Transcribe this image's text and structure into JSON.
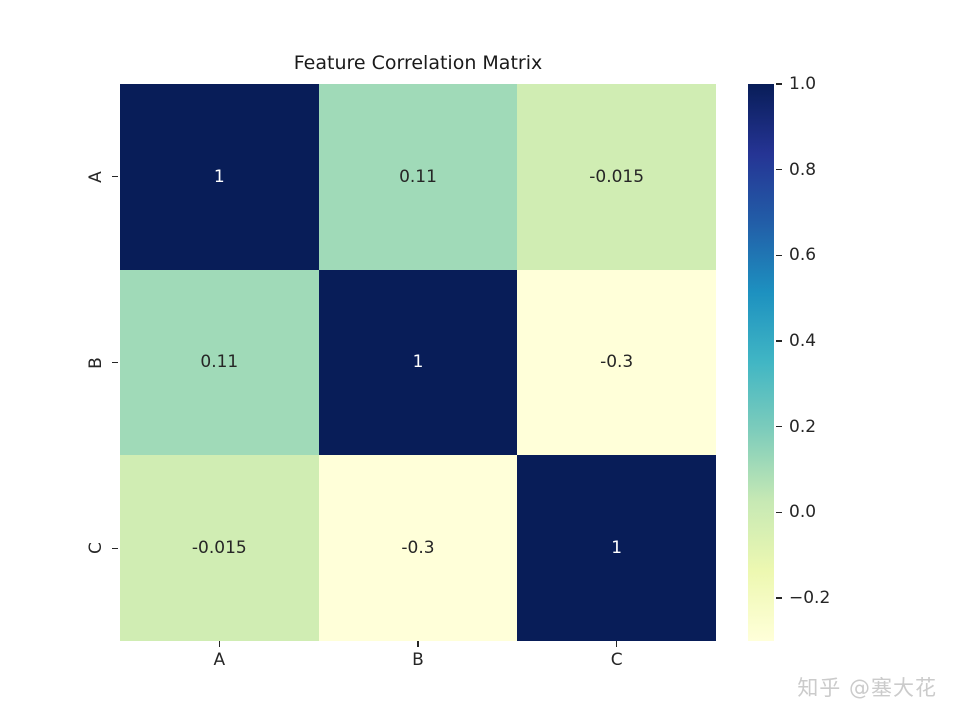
{
  "title": "Feature Correlation Matrix",
  "watermark": "知乎 @塞大花",
  "chart_data": {
    "type": "heatmap",
    "title": "Feature Correlation Matrix",
    "categories": [
      "A",
      "B",
      "C"
    ],
    "matrix": [
      [
        1,
        0.11,
        -0.015
      ],
      [
        0.11,
        1,
        -0.3
      ],
      [
        -0.015,
        -0.3,
        1
      ]
    ],
    "cell_labels": [
      [
        "1",
        "0.11",
        "-0.015"
      ],
      [
        "0.11",
        "1",
        "-0.3"
      ],
      [
        "-0.015",
        "-0.3",
        "1"
      ]
    ],
    "cell_colors": [
      [
        "#081d58",
        "#a0dab8",
        "#d0edb3"
      ],
      [
        "#a0dab8",
        "#081d58",
        "#ffffd9"
      ],
      [
        "#d0edb3",
        "#ffffd9",
        "#081d58"
      ]
    ],
    "text_colors": [
      [
        "#ffffff",
        "#262626",
        "#262626"
      ],
      [
        "#262626",
        "#ffffff",
        "#262626"
      ],
      [
        "#262626",
        "#262626",
        "#ffffff"
      ]
    ],
    "vmin": -0.3,
    "vmax": 1.0,
    "colormap": "YlGnBu",
    "colormap_stops": [
      {
        "pos": 0,
        "color": "#081d58"
      },
      {
        "pos": 12.5,
        "color": "#253494"
      },
      {
        "pos": 25,
        "color": "#225ea8"
      },
      {
        "pos": 37.5,
        "color": "#1d91c0"
      },
      {
        "pos": 50,
        "color": "#41b6c4"
      },
      {
        "pos": 62.5,
        "color": "#7fcdbb"
      },
      {
        "pos": 75,
        "color": "#c7e9b4"
      },
      {
        "pos": 87.5,
        "color": "#edf8b1"
      },
      {
        "pos": 100,
        "color": "#ffffd9"
      }
    ],
    "colorbar_ticks": [
      {
        "label": "1.0",
        "value": 1.0
      },
      {
        "label": "0.8",
        "value": 0.8
      },
      {
        "label": "0.6",
        "value": 0.6
      },
      {
        "label": "0.4",
        "value": 0.4
      },
      {
        "label": "0.2",
        "value": 0.2
      },
      {
        "label": "0.0",
        "value": 0.0
      },
      {
        "label": "−0.2",
        "value": -0.2
      }
    ],
    "legend_position": "right",
    "grid": false
  }
}
